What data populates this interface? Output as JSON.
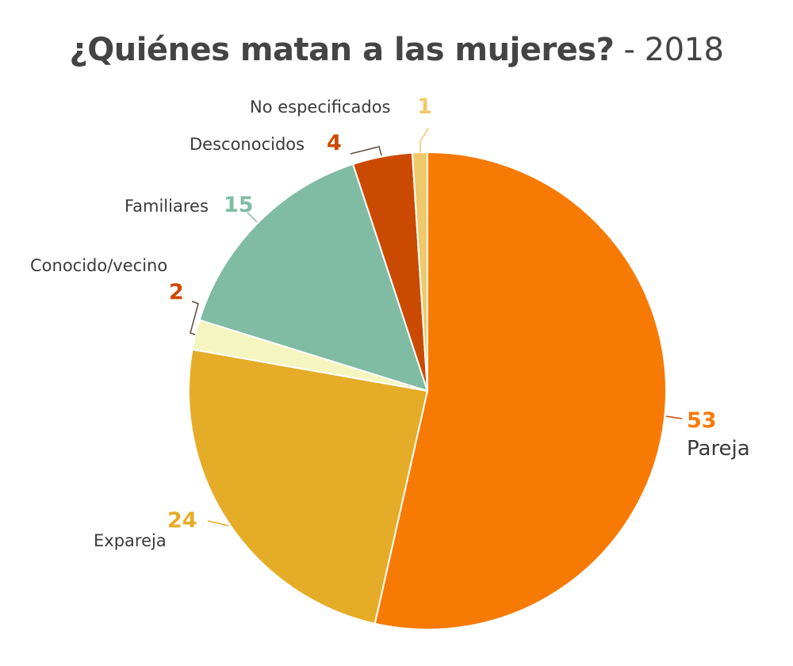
{
  "chart_data": {
    "type": "pie",
    "title": "¿Quiénes matan a las mujeres?",
    "subtitle": "- 2018",
    "start": "top",
    "direction": "clockwise",
    "slices": [
      {
        "label": "Pareja",
        "value": 53,
        "value_label": "53",
        "color": "#F77A05"
      },
      {
        "label": "Expareja",
        "value": 24,
        "value_label": "24",
        "color": "#E5AC27"
      },
      {
        "label": "Conocido/vecino",
        "value": 2,
        "value_label": "2",
        "color": "#F5F5C0",
        "value_color": "#CB4A02"
      },
      {
        "label": "Familiares",
        "value": 15,
        "value_label": "15",
        "color": "#80BBA3"
      },
      {
        "label": "Desconocidos",
        "value": 4,
        "value_label": "4",
        "color": "#CB4A02"
      },
      {
        "label": "No especificados",
        "value": 1,
        "value_label": "1",
        "color": "#F0CA6A"
      }
    ]
  }
}
